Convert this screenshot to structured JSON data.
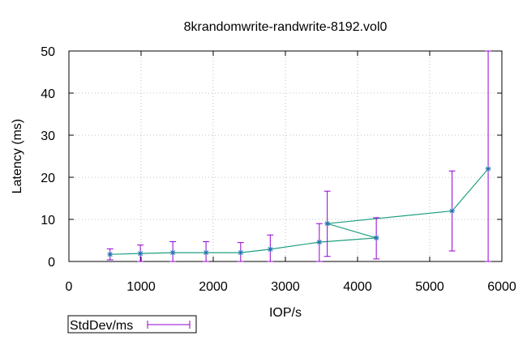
{
  "chart_data": {
    "type": "scatter",
    "title": "8krandomwrite-randwrite-8192.vol0",
    "xlabel": "IOP/s",
    "ylabel": "Latency (ms)",
    "xlim": [
      0,
      6000
    ],
    "ylim": [
      0,
      50
    ],
    "xticks": [
      0,
      1000,
      2000,
      3000,
      4000,
      5000,
      6000
    ],
    "yticks": [
      0,
      10,
      20,
      30,
      40,
      50
    ],
    "grid": true,
    "legend_position": "bottom-left",
    "series": [
      {
        "name": "StdDev/ms",
        "color": "#9400d3",
        "line_color": "#1fa07f",
        "marker_color": "#1f6fb0",
        "points": [
          {
            "x": 570,
            "y": 1.7,
            "low": 0.4,
            "high": 3.0
          },
          {
            "x": 990,
            "y": 1.9,
            "low": 0.0,
            "high": 3.9
          },
          {
            "x": 1440,
            "y": 2.1,
            "low": 0.0,
            "high": 4.7
          },
          {
            "x": 1900,
            "y": 2.1,
            "low": 0.0,
            "high": 4.7
          },
          {
            "x": 2380,
            "y": 2.1,
            "low": 0.0,
            "high": 4.5
          },
          {
            "x": 2790,
            "y": 2.9,
            "low": 0.0,
            "high": 6.3
          },
          {
            "x": 3470,
            "y": 4.6,
            "low": 0.0,
            "high": 9.0
          },
          {
            "x": 4260,
            "y": 5.6,
            "low": 0.6,
            "high": 10.4
          },
          {
            "x": 3580,
            "y": 9.0,
            "low": 1.2,
            "high": 16.7
          },
          {
            "x": 5310,
            "y": 12.0,
            "low": 2.5,
            "high": 21.5
          },
          {
            "x": 5810,
            "y": 22.0,
            "low": 0.0,
            "high": 50.0
          }
        ]
      }
    ]
  }
}
